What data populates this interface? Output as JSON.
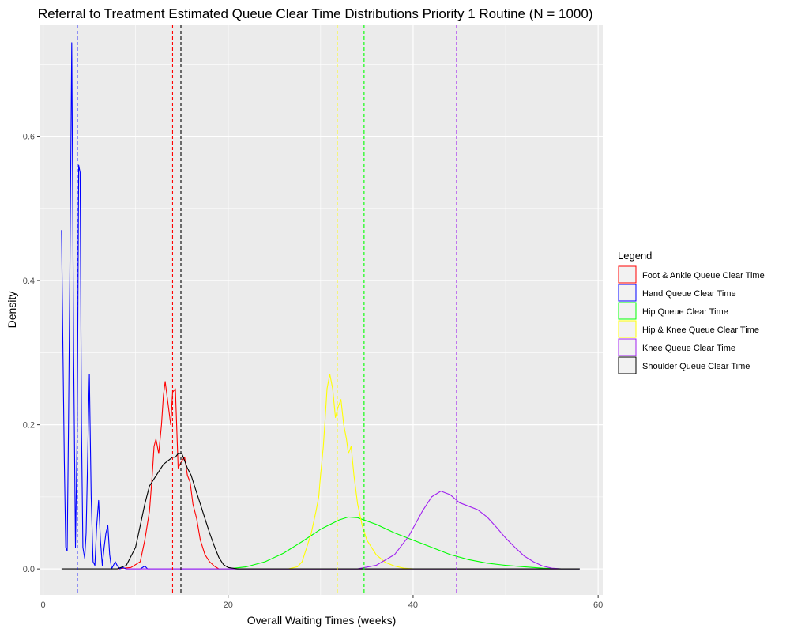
{
  "chart_data": {
    "type": "line",
    "title": "Referral to Treatment Estimated Queue Clear Time Distributions Priority 1 Routine (N = 1000)",
    "xlabel": "Overall Waiting Times (weeks)",
    "ylabel": "Density",
    "xlim": [
      -0.3,
      60.5
    ],
    "ylim": [
      -0.036,
      0.754
    ],
    "x_ticks": [
      0,
      20,
      40,
      60
    ],
    "x_tick_labels": [
      "0",
      "20",
      "40",
      "60"
    ],
    "y_ticks": [
      0.0,
      0.2,
      0.4,
      0.6
    ],
    "y_tick_labels": [
      "0.0",
      "0.2",
      "0.4",
      "0.6"
    ],
    "grid": true,
    "panel_background": "#ebebeb",
    "grid_color": "#ffffff",
    "legend": {
      "title": "Legend",
      "position": "right"
    },
    "series": [
      {
        "name": "Foot & Ankle Queue Clear Time",
        "color": "#ff0000",
        "mean_line": 14.0,
        "x": [
          8.0,
          9.5,
          10.5,
          11.0,
          11.5,
          11.8,
          12.0,
          12.2,
          12.5,
          12.8,
          13.0,
          13.2,
          13.5,
          13.8,
          14.0,
          14.3,
          14.6,
          15.0,
          15.3,
          15.6,
          15.9,
          16.2,
          16.6,
          17.0,
          17.5,
          18.0,
          18.5,
          19.0,
          22.0,
          58.0
        ],
        "y": [
          0.0,
          0.002,
          0.01,
          0.04,
          0.08,
          0.13,
          0.17,
          0.18,
          0.16,
          0.2,
          0.24,
          0.26,
          0.23,
          0.2,
          0.245,
          0.25,
          0.14,
          0.15,
          0.155,
          0.13,
          0.12,
          0.09,
          0.07,
          0.04,
          0.02,
          0.01,
          0.004,
          0.0,
          0.0,
          0.0
        ]
      },
      {
        "name": "Hand Queue Clear Time",
        "color": "#0000ff",
        "mean_line": 3.7,
        "x": [
          2.0,
          2.15,
          2.3,
          2.45,
          2.6,
          2.75,
          2.9,
          3.1,
          3.3,
          3.5,
          3.7,
          3.85,
          4.0,
          4.15,
          4.3,
          4.5,
          4.65,
          4.8,
          5.0,
          5.2,
          5.4,
          5.6,
          5.8,
          6.0,
          6.2,
          6.4,
          6.6,
          6.8,
          7.0,
          7.2,
          7.4,
          7.6,
          7.8,
          8.0,
          8.3,
          8.6,
          9.0,
          9.5,
          10.5,
          11.0,
          11.3,
          12.0,
          58.0
        ],
        "y": [
          0.47,
          0.3,
          0.15,
          0.03,
          0.025,
          0.2,
          0.42,
          0.73,
          0.3,
          0.03,
          0.2,
          0.56,
          0.55,
          0.2,
          0.03,
          0.015,
          0.05,
          0.14,
          0.27,
          0.1,
          0.01,
          0.005,
          0.06,
          0.095,
          0.04,
          0.005,
          0.03,
          0.05,
          0.06,
          0.02,
          0.0,
          0.005,
          0.01,
          0.005,
          0.0,
          0.002,
          0.0,
          0.0,
          0.0,
          0.004,
          0.0,
          0.0,
          0.0
        ]
      },
      {
        "name": "Hip Queue Clear Time",
        "color": "#00ff00",
        "mean_line": 34.7,
        "x": [
          18.0,
          20.0,
          22.0,
          24.0,
          26.0,
          28.0,
          30.0,
          32.0,
          33.0,
          34.0,
          36.0,
          38.0,
          40.0,
          42.0,
          44.0,
          46.0,
          48.0,
          50.0,
          52.0,
          54.0,
          56.0,
          58.0
        ],
        "y": [
          0.0,
          0.0,
          0.003,
          0.01,
          0.022,
          0.038,
          0.055,
          0.068,
          0.072,
          0.071,
          0.062,
          0.05,
          0.04,
          0.03,
          0.02,
          0.013,
          0.008,
          0.005,
          0.003,
          0.001,
          0.0,
          0.0
        ]
      },
      {
        "name": "Hip & Knee Queue Clear Time",
        "color": "#ffff00",
        "mean_line": 31.8,
        "x": [
          26.5,
          27.5,
          28.0,
          28.5,
          29.0,
          29.5,
          29.8,
          30.0,
          30.3,
          30.5,
          30.7,
          31.0,
          31.3,
          31.6,
          31.9,
          32.2,
          32.5,
          32.8,
          33.0,
          33.3,
          33.6,
          34.0,
          34.5,
          35.0,
          36.0,
          37.0,
          38.0,
          39.0,
          40.0
        ],
        "y": [
          0.0,
          0.003,
          0.01,
          0.03,
          0.05,
          0.08,
          0.1,
          0.13,
          0.17,
          0.21,
          0.25,
          0.27,
          0.25,
          0.21,
          0.225,
          0.235,
          0.2,
          0.18,
          0.16,
          0.17,
          0.13,
          0.09,
          0.06,
          0.04,
          0.02,
          0.009,
          0.004,
          0.001,
          0.0
        ]
      },
      {
        "name": "Knee Queue Clear Time",
        "color": "#a020f0",
        "mean_line": 44.7,
        "x": [
          9.0,
          11.0,
          34.0,
          36.0,
          38.0,
          39.5,
          41.0,
          42.0,
          43.0,
          44.0,
          45.0,
          46.0,
          47.0,
          48.0,
          49.0,
          50.0,
          51.0,
          52.0,
          53.0,
          54.0,
          55.0,
          56.0,
          58.0
        ],
        "y": [
          0.0,
          0.0,
          0.0,
          0.005,
          0.02,
          0.045,
          0.08,
          0.1,
          0.108,
          0.103,
          0.092,
          0.087,
          0.082,
          0.072,
          0.058,
          0.043,
          0.03,
          0.018,
          0.01,
          0.004,
          0.001,
          0.0,
          0.0
        ]
      },
      {
        "name": "Shoulder Queue Clear Time",
        "color": "#000000",
        "mean_line": 14.9,
        "x": [
          2.0,
          8.0,
          9.0,
          10.0,
          10.5,
          11.0,
          11.5,
          12.0,
          12.5,
          13.0,
          13.5,
          14.0,
          14.3,
          14.6,
          15.0,
          15.3,
          15.6,
          16.0,
          16.5,
          17.0,
          17.5,
          18.0,
          18.5,
          19.0,
          19.5,
          20.0,
          20.5,
          21.0,
          58.0
        ],
        "y": [
          0.0,
          0.0,
          0.005,
          0.03,
          0.06,
          0.09,
          0.115,
          0.125,
          0.135,
          0.145,
          0.15,
          0.155,
          0.155,
          0.16,
          0.16,
          0.15,
          0.14,
          0.13,
          0.11,
          0.09,
          0.07,
          0.05,
          0.032,
          0.016,
          0.006,
          0.002,
          0.001,
          0.0,
          0.0
        ]
      }
    ]
  }
}
